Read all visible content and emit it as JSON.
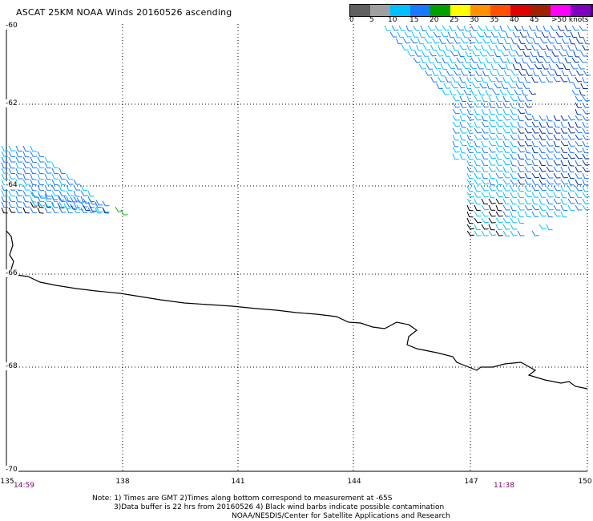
{
  "header": {
    "title": "ASCAT 25KM NOAA Winds 20160526 ascending"
  },
  "colorbar": {
    "colors": [
      "#606060",
      "#a0a0a0",
      "#00c0ff",
      "#1878ff",
      "#00a000",
      "#ffff00",
      "#ff9000",
      "#ff5000",
      "#e00000",
      "#a02000",
      "#ff00ff",
      "#8000c0",
      "#300070"
    ],
    "ticks": [
      "0",
      "5",
      "10",
      "15",
      "20",
      "25",
      "30",
      "35",
      "40",
      "45",
      ">50 knots"
    ]
  },
  "axes": {
    "lat_labels": [
      "-60",
      "-62",
      "-64",
      "-66",
      "-68",
      "-70"
    ],
    "lon_labels": [
      "135",
      "138",
      "141",
      "144",
      "147",
      "150"
    ]
  },
  "times": {
    "left": "14:59",
    "right": "11:38"
  },
  "notes": {
    "line1": "Note: 1) Times are GMT 2)Times along bottom correspond to measurement at -65S",
    "line2": "3)Data buffer is 22 hrs from 20160526 4) Black wind barbs indicate possible contamination",
    "line3": "NOAA/NESDIS/Center for Satellite Applications and Research"
  },
  "wind_colors": {
    "light": "#00c0ff",
    "mid": "#1878ff",
    "dark": "#0030a0",
    "green": "#00c000",
    "contaminated": "#000000"
  }
}
